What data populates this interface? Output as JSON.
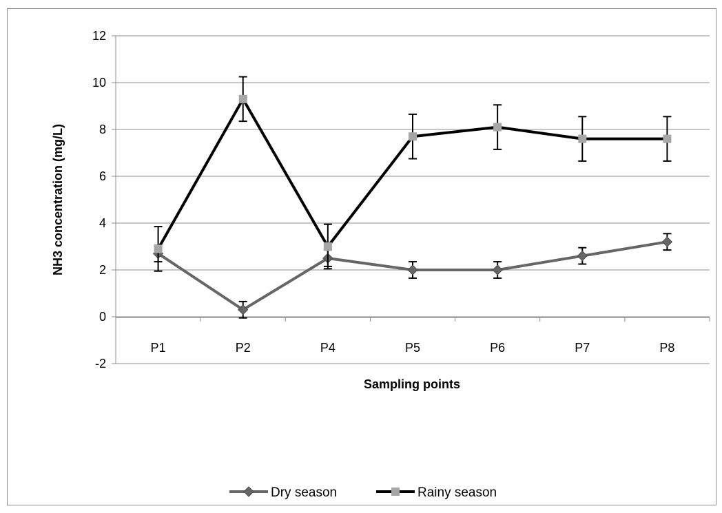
{
  "chart_data": {
    "type": "line",
    "title": "",
    "xlabel": "Sampling points",
    "ylabel": "NH3 concentration (mg/L)",
    "ylim": [
      -2,
      12
    ],
    "yticks": [
      -2,
      0,
      2,
      4,
      6,
      8,
      10,
      12
    ],
    "categories": [
      "P1",
      "P2",
      "P4",
      "P5",
      "P6",
      "P7",
      "P8"
    ],
    "grid": true,
    "legend_position": "bottom",
    "series": [
      {
        "name": "Dry season",
        "color": "#666666",
        "marker": "diamond",
        "values": [
          2.7,
          0.3,
          2.5,
          2.0,
          2.0,
          2.6,
          3.2
        ],
        "error": [
          0.35,
          0.35,
          0.35,
          0.35,
          0.35,
          0.35,
          0.35
        ]
      },
      {
        "name": "Rainy season",
        "color": "#000000",
        "marker": "square",
        "marker_color": "#a6a6a6",
        "values": [
          2.9,
          9.3,
          3.0,
          7.7,
          8.1,
          7.6,
          7.6
        ],
        "error": [
          0.95,
          0.95,
          0.95,
          0.95,
          0.95,
          0.95,
          0.95
        ]
      }
    ]
  }
}
